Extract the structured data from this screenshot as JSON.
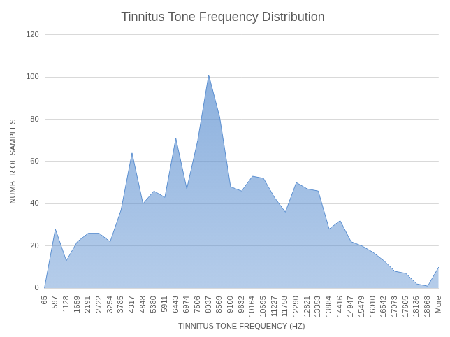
{
  "chart_data": {
    "type": "area",
    "title": "Tinnitus Tone Frequency Distribution",
    "x_label": "TINNITUS TONE FREQUENCY (HZ)",
    "y_label": "NUMBER OF SAMPLES",
    "categories": [
      "65",
      "597",
      "1128",
      "1659",
      "2191",
      "2722",
      "3254",
      "3785",
      "4317",
      "4848",
      "5380",
      "5911",
      "6443",
      "6974",
      "7506",
      "8037",
      "8569",
      "9100",
      "9632",
      "10164",
      "10695",
      "11227",
      "11758",
      "12290",
      "12821",
      "13353",
      "13884",
      "14416",
      "14947",
      "15479",
      "16010",
      "16542",
      "17073",
      "17605",
      "18136",
      "18668",
      "More"
    ],
    "values": [
      0,
      28,
      13,
      22,
      26,
      26,
      22,
      37,
      64,
      40,
      46,
      43,
      71,
      47,
      70,
      101,
      81,
      48,
      46,
      53,
      52,
      43,
      36,
      50,
      47,
      46,
      28,
      32,
      22,
      20,
      17,
      13,
      8,
      7,
      2,
      1,
      10
    ],
    "color": "#5b8fd0",
    "ylim": [
      0,
      120
    ],
    "yticks": [
      0,
      20,
      40,
      60,
      80,
      100,
      120
    ],
    "grid": true
  }
}
